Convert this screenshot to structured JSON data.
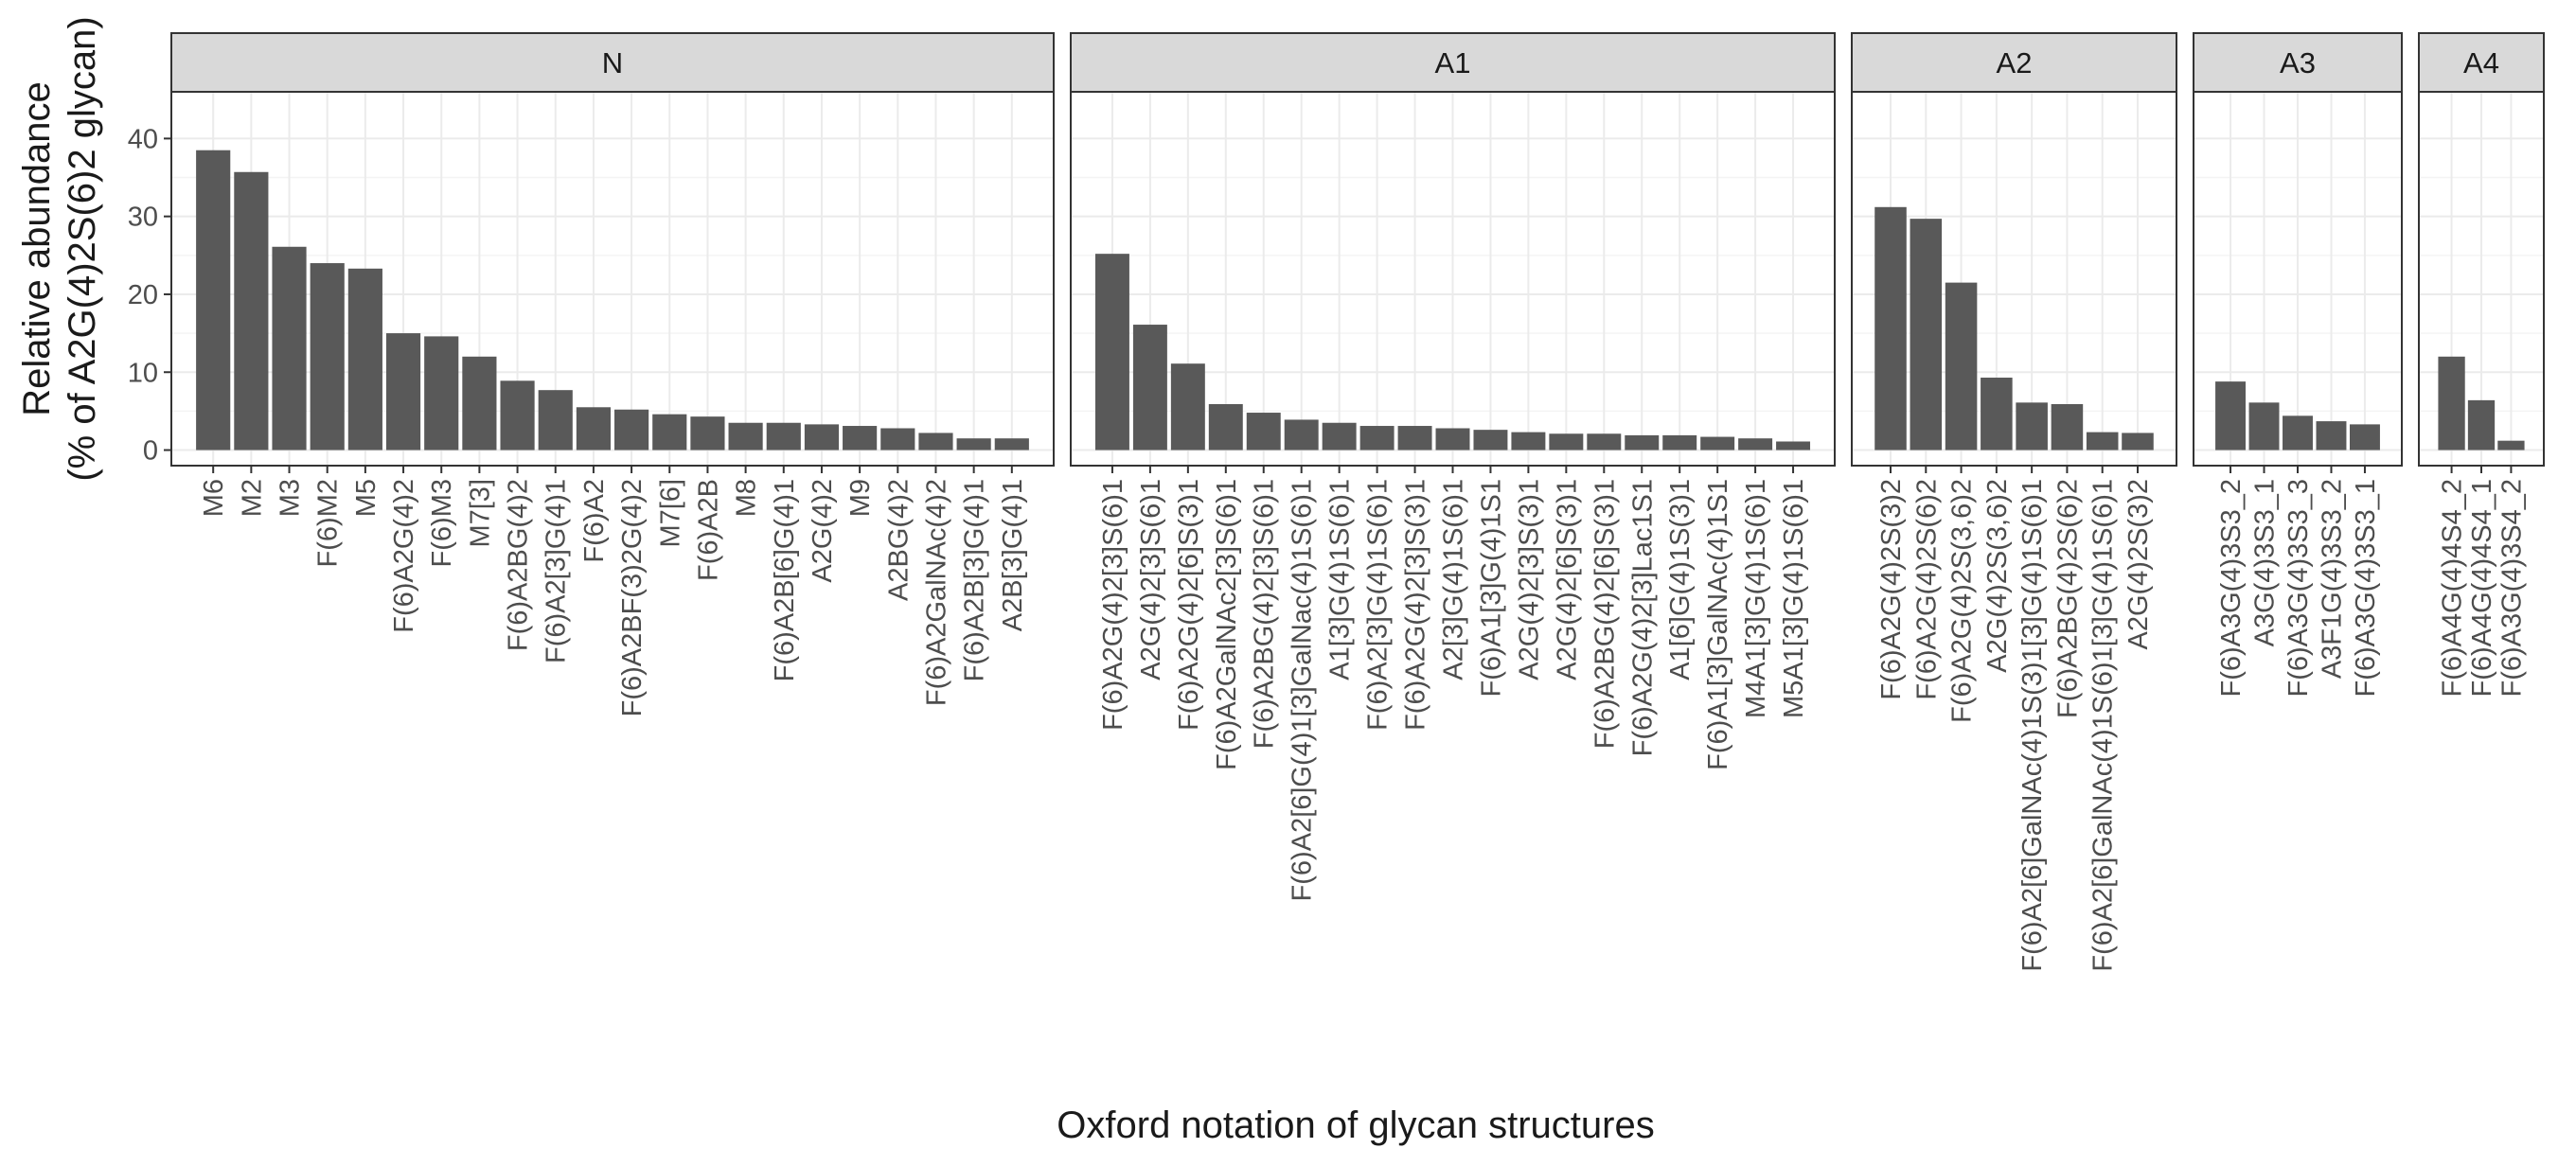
{
  "chart_data": {
    "type": "bar",
    "facet_layout": "horizontal",
    "xlabel": "Oxford notation of glycan structures",
    "ylabel_lines": [
      "Relative abundance",
      "(% of A2G(4)2S(6)2 glycan)"
    ],
    "ylim": [
      -2,
      46
    ],
    "y_ticks": [
      0,
      10,
      20,
      30,
      40
    ],
    "grid": true,
    "colors": {
      "bar": "#595959",
      "strip_fill": "#d9d9d9",
      "panel_border": "#333333",
      "grid_major": "#ebebeb",
      "grid_minor": "#f4f4f4",
      "text": "#1a1a1a",
      "tick_text": "#4d4d4d"
    },
    "facets": [
      {
        "name": "N",
        "categories": [
          "M6",
          "M2",
          "M3",
          "F(6)M2",
          "M5",
          "F(6)A2G(4)2",
          "F(6)M3",
          "M7[3]",
          "F(6)A2BG(4)2",
          "F(6)A2[3]G(4)1",
          "F(6)A2",
          "F(6)A2BF(3)2G(4)2",
          "M7[6]",
          "F(6)A2B",
          "M8",
          "F(6)A2B[6]G(4)1",
          "A2G(4)2",
          "M9",
          "A2BG(4)2",
          "F(6)A2GalNAc(4)2",
          "F(6)A2B[3]G(4)1",
          "A2B[3]G(4)1"
        ],
        "values": [
          38.5,
          35.7,
          26.1,
          24.0,
          23.3,
          15.0,
          14.6,
          12.0,
          8.9,
          7.7,
          5.5,
          5.2,
          4.6,
          4.3,
          3.5,
          3.5,
          3.3,
          3.1,
          2.8,
          2.2,
          1.5,
          1.5
        ]
      },
      {
        "name": "A1",
        "categories": [
          "F(6)A2G(4)2[3]S(6)1",
          "A2G(4)2[3]S(6)1",
          "F(6)A2G(4)2[6]S(3)1",
          "F(6)A2GalNAc2[3]S(6)1",
          "F(6)A2BG(4)2[3]S(6)1",
          "F(6)A2[6]G(4)1[3]GalNac(4)1S(6)1",
          "A1[3]G(4)1S(6)1",
          "F(6)A2[3]G(4)1S(6)1",
          "F(6)A2G(4)2[3]S(3)1",
          "A2[3]G(4)1S(6)1",
          "F(6)A1[3]G(4)1S1",
          "A2G(4)2[3]S(3)1",
          "A2G(4)2[6]S(3)1",
          "F(6)A2BG(4)2[6]S(3)1",
          "F(6)A2G(4)2[3]Lac1S1",
          "A1[6]G(4)1S(3)1",
          "F(6)A1[3]GalNAc(4)1S1",
          "M4A1[3]G(4)1S(6)1",
          "M5A1[3]G(4)1S(6)1"
        ],
        "values": [
          25.2,
          16.1,
          11.1,
          5.9,
          4.8,
          3.9,
          3.5,
          3.1,
          3.1,
          2.8,
          2.6,
          2.3,
          2.1,
          2.1,
          1.9,
          1.9,
          1.7,
          1.5,
          1.1
        ]
      },
      {
        "name": "A2",
        "categories": [
          "F(6)A2G(4)2S(3)2",
          "F(6)A2G(4)2S(6)2",
          "F(6)A2G(4)2S(3,6)2",
          "A2G(4)2S(3,6)2",
          "F(6)A2[6]GalNAc(4)1S(3)1[3]G(4)1S(6)1",
          "F(6)A2BG(4)2S(6)2",
          "F(6)A2[6]GalNAc(4)1S(6)1[3]G(4)1S(6)1",
          "A2G(4)2S(3)2"
        ],
        "values": [
          31.2,
          29.7,
          21.5,
          9.3,
          6.1,
          5.9,
          2.3,
          2.2
        ]
      },
      {
        "name": "A3",
        "categories": [
          "F(6)A3G(4)3S3_2",
          "A3G(4)3S3_1",
          "F(6)A3G(4)3S3_3",
          "A3F1G(4)3S3_2",
          "F(6)A3G(4)3S3_1"
        ],
        "values": [
          8.8,
          6.1,
          4.4,
          3.7,
          3.3
        ]
      },
      {
        "name": "A4",
        "categories": [
          "F(6)A4G(4)4S4_2",
          "F(6)A4G(4)4S4_1",
          "F(6)A3G(4)3S4_2"
        ],
        "values": [
          12.0,
          6.4,
          1.2
        ]
      }
    ]
  }
}
